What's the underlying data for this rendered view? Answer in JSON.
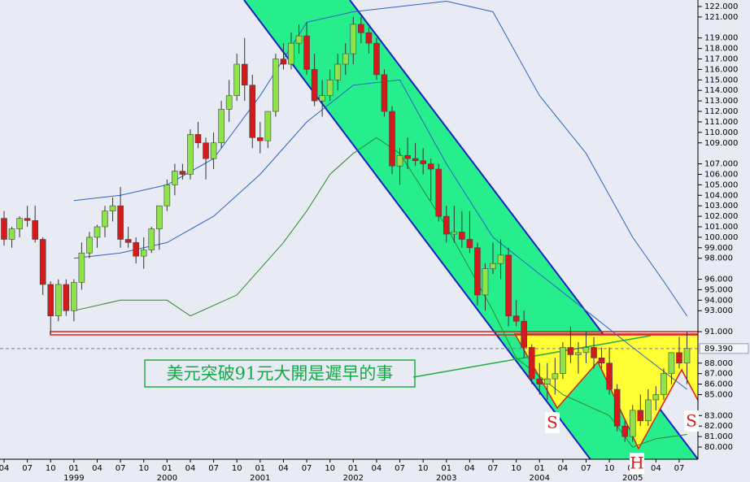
{
  "chart_data": {
    "type": "candlestick",
    "x": [
      "1998-04",
      "1998-05",
      "1998-06",
      "1998-07",
      "1998-08",
      "1998-09",
      "1998-10",
      "1998-11",
      "1998-12",
      "1999-01",
      "1999-02",
      "1999-03",
      "1999-04",
      "1999-05",
      "1999-06",
      "1999-07",
      "1999-08",
      "1999-09",
      "1999-10",
      "1999-11",
      "1999-12",
      "2000-01",
      "2000-02",
      "2000-03",
      "2000-04",
      "2000-05",
      "2000-06",
      "2000-07",
      "2000-08",
      "2000-09",
      "2000-10",
      "2000-11",
      "2000-12",
      "2001-01",
      "2001-02",
      "2001-03",
      "2001-04",
      "2001-05",
      "2001-06",
      "2001-07",
      "2001-08",
      "2001-09",
      "2001-10",
      "2001-11",
      "2001-12",
      "2002-01",
      "2002-02",
      "2002-03",
      "2002-04",
      "2002-05",
      "2002-06",
      "2002-07",
      "2002-08",
      "2002-09",
      "2002-10",
      "2002-11",
      "2002-12",
      "2003-01",
      "2003-02",
      "2003-03",
      "2003-04",
      "2003-05",
      "2003-06",
      "2003-07",
      "2003-08",
      "2003-09",
      "2003-10",
      "2003-11",
      "2003-12",
      "2004-01",
      "2004-02",
      "2004-03",
      "2004-04",
      "2004-05",
      "2004-06",
      "2004-07",
      "2004-08",
      "2004-09",
      "2004-10",
      "2004-11",
      "2004-12",
      "2005-01",
      "2005-02",
      "2005-03",
      "2005-04",
      "2005-05",
      "2005-06",
      "2005-07",
      "2005-08"
    ],
    "open": [
      101.8,
      99.8,
      100.8,
      101.8,
      101.6,
      99.8,
      95.5,
      92.5,
      95.5,
      93,
      95.7,
      98.5,
      100,
      101,
      102.5,
      103,
      99.8,
      99.5,
      98.2,
      98.8,
      100.8,
      103,
      105,
      106.3,
      106,
      109.8,
      109,
      107.5,
      109,
      112.2,
      113.5,
      116.5,
      114.5,
      109.5,
      109.2,
      112,
      117,
      116.5,
      118.5,
      119.2,
      116,
      113,
      113.5,
      115,
      116.5,
      117.5,
      120.3,
      119.5,
      118.5,
      115.5,
      112,
      106.8,
      107.8,
      107.5,
      107.3,
      107,
      106.5,
      102,
      100.3,
      100.5,
      99.8,
      99,
      94.5,
      97,
      97.5,
      98.3,
      92.5,
      92,
      89.5,
      86.5,
      86,
      86.5,
      87,
      89.5,
      88.8,
      89,
      89.5,
      88.5,
      88,
      85.5,
      82,
      81,
      83.5,
      82.5,
      84.5,
      85,
      87,
      89,
      88
    ],
    "high": [
      102.5,
      101,
      102,
      103,
      103,
      100,
      95.8,
      96,
      96,
      96,
      99.5,
      100.5,
      101.2,
      103,
      103.8,
      104.8,
      101,
      100,
      100,
      101,
      103,
      105.5,
      107,
      107,
      110.3,
      111,
      109.5,
      110,
      113,
      115,
      117.5,
      119,
      115.5,
      111,
      112,
      117.5,
      118.5,
      119.5,
      120.3,
      120.5,
      117.5,
      115,
      116,
      117.5,
      118.5,
      121,
      121,
      120,
      119,
      116,
      112.5,
      108.5,
      109.5,
      109,
      108.5,
      107.5,
      107,
      103,
      103,
      102.5,
      102.5,
      99.5,
      97.5,
      99.5,
      99.8,
      99,
      94,
      93,
      89.8,
      88,
      88,
      88.5,
      90,
      91.5,
      90,
      91,
      90.5,
      89.5,
      89.5,
      86,
      82.5,
      84,
      85,
      85.5,
      85.8,
      87.5,
      89,
      90.5,
      91
    ],
    "low": [
      99.2,
      99,
      100,
      101,
      99.5,
      94.5,
      90.8,
      92,
      92.5,
      92,
      95,
      98,
      99,
      100,
      101.5,
      99,
      99,
      97.5,
      97,
      98.5,
      98.8,
      102.5,
      104,
      105.5,
      105.5,
      108.5,
      105.5,
      106.5,
      108.5,
      111,
      113,
      113,
      108.5,
      108,
      108.5,
      111.5,
      116,
      116,
      117.5,
      115.5,
      112.5,
      111.5,
      113,
      114,
      115.5,
      116.5,
      118.5,
      117.5,
      115,
      111.5,
      106,
      105,
      106.5,
      106.8,
      106,
      103.5,
      101.5,
      99.5,
      99.5,
      99,
      98.5,
      93.5,
      93,
      96.5,
      96,
      91.5,
      91.5,
      88.5,
      86,
      85,
      84.5,
      85,
      86.5,
      88,
      87,
      88,
      87.5,
      87.5,
      85,
      81.5,
      80.5,
      80.5,
      82,
      82,
      83.5,
      84.5,
      86,
      87.5,
      86
    ],
    "close": [
      99.8,
      100.8,
      101.8,
      101.6,
      99.8,
      95.5,
      92.5,
      95.5,
      93,
      95.7,
      98.5,
      100,
      101,
      102.5,
      103,
      99.8,
      99.5,
      98.2,
      98.8,
      100.8,
      103,
      105,
      106.3,
      106,
      109.8,
      109,
      107.5,
      109,
      112.2,
      113.5,
      116.5,
      114.5,
      109.5,
      109.2,
      112,
      117,
      116.5,
      118.5,
      119.2,
      116,
      113,
      113.5,
      115,
      116.5,
      117.5,
      120.3,
      119.5,
      118.5,
      115.5,
      112,
      106.8,
      107.8,
      107.5,
      107.3,
      107,
      106.5,
      102,
      100.3,
      100.5,
      99.8,
      99,
      94.5,
      97,
      97.5,
      98.3,
      92.5,
      92,
      89.5,
      86.5,
      86,
      86.5,
      87,
      89.5,
      88.8,
      89,
      89.5,
      88.5,
      88,
      85.5,
      82,
      81,
      83.5,
      82.5,
      84.5,
      85,
      87,
      89,
      88,
      89.39
    ],
    "up_color": "#8ee24a",
    "down_color": "#d41a1a",
    "overlays": [
      {
        "color": "#2d63c4",
        "x": [
          "1999-01",
          "1999-07",
          "2000-01",
          "2000-07",
          "2001-01",
          "2001-07",
          "2002-01",
          "2002-07",
          "2003-01",
          "2003-07",
          "2004-01",
          "2004-07",
          "2005-01",
          "2005-05",
          "2005-08"
        ],
        "values": [
          103.5,
          104,
          105,
          107.5,
          113.5,
          120.5,
          121.5,
          122,
          122.5,
          121.5,
          113.5,
          108,
          100,
          95.8,
          92.5
        ]
      },
      {
        "color": "#2d63c4",
        "x": [
          "1999-01",
          "1999-07",
          "2000-01",
          "2000-07",
          "2001-01",
          "2001-07",
          "2002-01",
          "2002-07",
          "2003-01",
          "2003-07",
          "2004-01",
          "2004-07",
          "2005-01",
          "2005-08"
        ],
        "values": [
          98,
          98.5,
          99.5,
          102,
          106,
          111,
          114.5,
          115,
          107,
          100,
          96.5,
          93,
          89.5,
          85.5
        ]
      },
      {
        "color": "#2a8a2a",
        "x": [
          "1999-01",
          "1999-07",
          "2000-01",
          "2000-04",
          "2000-10",
          "2001-04",
          "2001-07",
          "2001-10",
          "2002-01",
          "2002-04",
          "2002-07",
          "2002-10",
          "2003-01",
          "2003-07",
          "2003-10",
          "2004-04",
          "2004-10",
          "2005-01",
          "2005-04",
          "2005-08"
        ],
        "values": [
          93,
          94,
          94,
          92.5,
          94.5,
          99.5,
          102.5,
          106,
          108,
          109.5,
          108,
          104.5,
          101,
          93,
          88.5,
          85,
          83,
          80,
          80.8,
          81.2
        ]
      }
    ],
    "ylim": [
      79.6,
      122.6
    ],
    "yticks": [
      {
        "value": 122,
        "label": "122.000"
      },
      {
        "value": 121,
        "label": "121.000"
      },
      {
        "value": 119,
        "label": "119.000"
      },
      {
        "value": 118,
        "label": "118.000"
      },
      {
        "value": 117,
        "label": "117.000"
      },
      {
        "value": 116,
        "label": "116.000"
      },
      {
        "value": 115,
        "label": "115.000"
      },
      {
        "value": 114,
        "label": "114.000"
      },
      {
        "value": 113,
        "label": "113.000"
      },
      {
        "value": 112,
        "label": "112.000"
      },
      {
        "value": 111,
        "label": "111.000"
      },
      {
        "value": 110,
        "label": "110.000"
      },
      {
        "value": 109,
        "label": "109.000"
      },
      {
        "value": 107,
        "label": "107.000"
      },
      {
        "value": 106,
        "label": "106.000"
      },
      {
        "value": 105,
        "label": "105.000"
      },
      {
        "value": 104,
        "label": "104.000"
      },
      {
        "value": 103,
        "label": "103.000"
      },
      {
        "value": 102,
        "label": "102.000"
      },
      {
        "value": 101,
        "label": "101.000"
      },
      {
        "value": 100,
        "label": "100.000"
      },
      {
        "value": 99,
        "label": "99.000"
      },
      {
        "value": 98,
        "label": "98.000"
      },
      {
        "value": 96,
        "label": "96.000"
      },
      {
        "value": 95,
        "label": "95.000"
      },
      {
        "value": 94,
        "label": "94.000"
      },
      {
        "value": 93,
        "label": "93.000"
      },
      {
        "value": 91,
        "label": "91.000"
      },
      {
        "value": 88,
        "label": "88.000"
      },
      {
        "value": 87,
        "label": "87.000"
      },
      {
        "value": 86,
        "label": "86.000"
      },
      {
        "value": 85,
        "label": "85.000"
      },
      {
        "value": 83,
        "label": "83.000"
      },
      {
        "value": 82,
        "label": "82.000"
      },
      {
        "value": 81,
        "label": "81.000"
      },
      {
        "value": 80,
        "label": "80.000"
      }
    ],
    "last_price": {
      "value": 89.39,
      "label": "89.390"
    },
    "xticks": [
      {
        "value": "1998-04",
        "label": "04"
      },
      {
        "value": "1998-07",
        "label": "07"
      },
      {
        "value": "1998-10",
        "label": "10"
      },
      {
        "value": "1999-01",
        "label": "01"
      },
      {
        "value": "1999-04",
        "label": "04"
      },
      {
        "value": "1999-07",
        "label": "07"
      },
      {
        "value": "1999-10",
        "label": "10"
      },
      {
        "value": "2000-01",
        "label": "01"
      },
      {
        "value": "2000-04",
        "label": "04"
      },
      {
        "value": "2000-07",
        "label": "07"
      },
      {
        "value": "2000-10",
        "label": "10"
      },
      {
        "value": "2001-01",
        "label": "01"
      },
      {
        "value": "2001-04",
        "label": "04"
      },
      {
        "value": "2001-07",
        "label": "07"
      },
      {
        "value": "2001-10",
        "label": "10"
      },
      {
        "value": "2002-01",
        "label": "01"
      },
      {
        "value": "2002-04",
        "label": "04"
      },
      {
        "value": "2002-07",
        "label": "07"
      },
      {
        "value": "2002-10",
        "label": "10"
      },
      {
        "value": "2003-01",
        "label": "01"
      },
      {
        "value": "2003-04",
        "label": "04"
      },
      {
        "value": "2003-07",
        "label": "07"
      },
      {
        "value": "2003-10",
        "label": "10"
      },
      {
        "value": "2004-01",
        "label": "01"
      },
      {
        "value": "2004-04",
        "label": "04"
      },
      {
        "value": "2004-07",
        "label": "07"
      },
      {
        "value": "2004-10",
        "label": "10"
      },
      {
        "value": "2005-01",
        "label": "01"
      },
      {
        "value": "2005-04",
        "label": "04"
      },
      {
        "value": "2005-07",
        "label": "07"
      }
    ],
    "year_labels": [
      {
        "value": "1999-01",
        "label": "1999"
      },
      {
        "value": "2000-01",
        "label": "2000"
      },
      {
        "value": "2001-01",
        "label": "2001"
      },
      {
        "value": "2002-01",
        "label": "2002"
      },
      {
        "value": "2003-01",
        "label": "2003"
      },
      {
        "value": "2004-01",
        "label": "2004"
      },
      {
        "value": "2005-01",
        "label": "2005"
      }
    ],
    "annotation": "美元突破91元大開是遲早的事",
    "pattern_labels": [
      "S",
      "H",
      "S"
    ]
  }
}
